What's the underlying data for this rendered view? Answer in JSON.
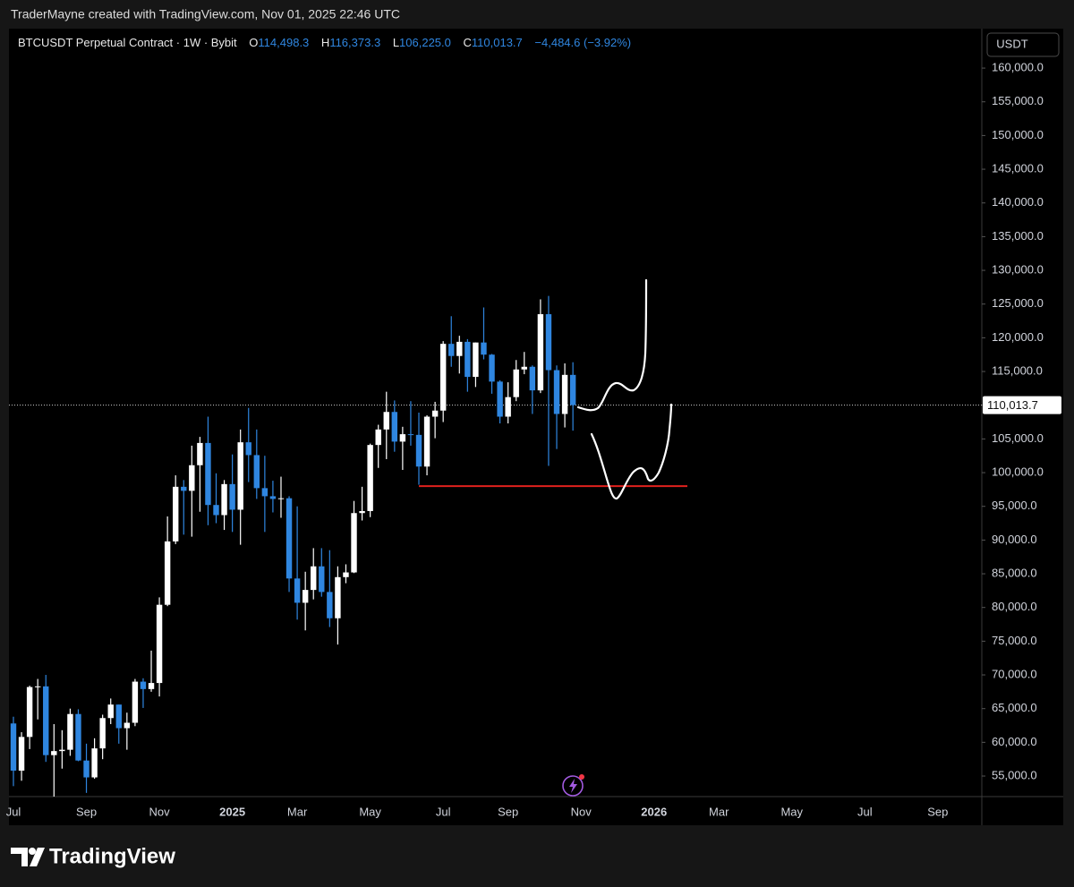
{
  "header": {
    "credit": "TraderMayne created with TradingView.com, Nov 01, 2025 22:46 UTC"
  },
  "chart_data": {
    "type": "candlestick",
    "symbol": "BTCUSDT Perpetual Contract · 1W · Bybit",
    "ohlc_legend": [
      {
        "label": "O",
        "value": "114,498.3"
      },
      {
        "label": "H",
        "value": "116,373.3"
      },
      {
        "label": "L",
        "value": "106,225.0"
      },
      {
        "label": "C",
        "value": "110,013.7"
      }
    ],
    "change": "−4,484.6 (−3.92%)",
    "currency": "USDT",
    "categories": [
      "Jul",
      null,
      null,
      null,
      null,
      null,
      null,
      null,
      null,
      "Sep",
      null,
      null,
      null,
      null,
      null,
      null,
      null,
      null,
      "Nov",
      null,
      null,
      null,
      null,
      null,
      null,
      null,
      null,
      "2025",
      null,
      null,
      null,
      null,
      null,
      null,
      null,
      "Mar",
      null,
      null,
      null,
      null,
      null,
      null,
      null,
      null,
      "May",
      null,
      null,
      null,
      null,
      null,
      null,
      null,
      null,
      "Jul",
      null,
      null,
      null,
      null,
      null,
      null,
      null,
      "Sep",
      null,
      null,
      null,
      null,
      null,
      null,
      null,
      null,
      "Nov",
      null,
      null,
      null,
      null,
      null,
      null,
      null,
      null,
      "2026",
      null,
      null,
      null,
      null,
      null,
      null,
      null,
      "Mar",
      null,
      null,
      null,
      null,
      null,
      null,
      null,
      null,
      "May",
      null,
      null,
      null,
      null,
      null,
      null,
      null,
      null,
      "Jul",
      null,
      null,
      null,
      null,
      null,
      null,
      null,
      null,
      "Sep",
      null,
      null,
      null,
      null,
      null
    ],
    "open": [
      62800,
      55800,
      60800,
      68200,
      68300,
      58100,
      58700,
      58900,
      64200,
      57300,
      54800,
      59100,
      63600,
      65600,
      62100,
      62900,
      69000,
      67900,
      68800,
      80400,
      89800,
      97900,
      97300,
      101100,
      104400,
      95200,
      93700,
      98300,
      94500,
      104500,
      102600,
      97700,
      96500,
      96100,
      96200,
      84300,
      80700,
      82600,
      86100,
      82300,
      78400,
      84500,
      85200,
      94000,
      94300,
      104100,
      106400,
      109000,
      104600,
      105700,
      105600,
      100900,
      108300,
      109200,
      119100,
      117300,
      119400,
      114200,
      119300,
      117500,
      113500,
      108300,
      111200,
      115300,
      115700,
      112200,
      123500,
      115200,
      108700,
      114498.3,
      null,
      null,
      null,
      null,
      null,
      null,
      null,
      null,
      null,
      null,
      null,
      null,
      null,
      null,
      null,
      null,
      null,
      null,
      null,
      null,
      null,
      null,
      null,
      null,
      null,
      null,
      null,
      null,
      null,
      null,
      null,
      null,
      null,
      null,
      null,
      null,
      null,
      null,
      null,
      null,
      null,
      null,
      null,
      null,
      null,
      null,
      null,
      null,
      null,
      null
    ],
    "high": [
      63800,
      61500,
      68400,
      69400,
      70000,
      62700,
      61800,
      65000,
      64900,
      59800,
      60600,
      64100,
      66500,
      65600,
      64400,
      69400,
      69500,
      73600,
      81500,
      93500,
      99600,
      98900,
      104000,
      105300,
      108300,
      99900,
      98900,
      102700,
      106400,
      109600,
      106400,
      102500,
      98800,
      99400,
      96500,
      95000,
      85300,
      88800,
      88800,
      88500,
      86100,
      86400,
      95800,
      97900,
      104300,
      107100,
      112000,
      110700,
      106800,
      110600,
      108900,
      108500,
      110500,
      119500,
      123200,
      120300,
      119800,
      119300,
      124500,
      117600,
      113700,
      113400,
      116700,
      117900,
      115900,
      125700,
      126200,
      115900,
      116200,
      116373.3,
      null,
      null,
      null,
      null,
      null,
      null,
      null,
      null,
      null,
      null,
      null,
      null,
      null,
      null,
      null,
      null,
      null,
      null,
      null,
      null,
      null,
      null,
      null,
      null,
      null,
      null,
      null,
      null,
      null,
      null,
      null,
      null,
      null,
      null,
      null,
      null,
      null,
      null,
      null,
      null,
      null,
      null,
      null,
      null,
      null,
      null,
      null,
      null,
      null,
      null
    ],
    "low": [
      53500,
      54300,
      59000,
      63400,
      57100,
      49000,
      56100,
      58000,
      57200,
      52500,
      54600,
      57500,
      62700,
      59800,
      58900,
      62400,
      65100,
      67500,
      66800,
      80200,
      89400,
      90800,
      90500,
      94200,
      92200,
      92500,
      91500,
      91200,
      89300,
      98600,
      96100,
      91200,
      94100,
      93300,
      82300,
      78200,
      76600,
      81200,
      81600,
      77100,
      74500,
      83600,
      85100,
      92900,
      93400,
      100700,
      102000,
      103100,
      100400,
      104000,
      98200,
      99600,
      105100,
      107500,
      115700,
      114700,
      112000,
      112700,
      116800,
      111700,
      107300,
      107300,
      110600,
      114600,
      108700,
      111800,
      101000,
      103500,
      106700,
      106225.0,
      null,
      null,
      null,
      null,
      null,
      null,
      null,
      null,
      null,
      null,
      null,
      null,
      null,
      null,
      null,
      null,
      null,
      null,
      null,
      null,
      null,
      null,
      null,
      null,
      null,
      null,
      null,
      null,
      null,
      null,
      null,
      null,
      null,
      null,
      null,
      null,
      null,
      null,
      null,
      null,
      null,
      null,
      null,
      null,
      null,
      null,
      null,
      null,
      null,
      null
    ],
    "close": [
      55800,
      60800,
      68200,
      68300,
      58100,
      58700,
      58900,
      64200,
      57300,
      54800,
      59100,
      63600,
      65600,
      62100,
      62900,
      69000,
      67900,
      68800,
      80400,
      89800,
      97900,
      97300,
      101100,
      104400,
      95200,
      93700,
      98300,
      94500,
      104500,
      102600,
      97700,
      96500,
      96100,
      96200,
      84300,
      80700,
      82600,
      86100,
      82300,
      78400,
      84500,
      85200,
      94000,
      94300,
      104100,
      106400,
      109000,
      104600,
      105700,
      105600,
      100900,
      108300,
      109200,
      119100,
      117300,
      119400,
      114200,
      119300,
      117500,
      113500,
      108300,
      111200,
      115300,
      115700,
      112200,
      123500,
      115200,
      108700,
      114500,
      110013.7,
      null,
      null,
      null,
      null,
      null,
      null,
      null,
      null,
      null,
      null,
      null,
      null,
      null,
      null,
      null,
      null,
      null,
      null,
      null,
      null,
      null,
      null,
      null,
      null,
      null,
      null,
      null,
      null,
      null,
      null,
      null,
      null,
      null,
      null,
      null,
      null,
      null,
      null,
      null,
      null,
      null,
      null,
      null,
      null,
      null,
      null,
      null,
      null,
      null,
      null
    ],
    "up_color": "#ffffff",
    "down_color": "#2f86e0",
    "ylim": [
      51950,
      165850
    ],
    "yticks": [
      {
        "value": 160000,
        "label": "160,000.0"
      },
      {
        "value": 155000,
        "label": "155,000.0"
      },
      {
        "value": 150000,
        "label": "150,000.0"
      },
      {
        "value": 145000,
        "label": "145,000.0"
      },
      {
        "value": 140000,
        "label": "140,000.0"
      },
      {
        "value": 135000,
        "label": "135,000.0"
      },
      {
        "value": 130000,
        "label": "130,000.0"
      },
      {
        "value": 125000,
        "label": "125,000.0"
      },
      {
        "value": 120000,
        "label": "120,000.0"
      },
      {
        "value": 115000,
        "label": "115,000.0"
      },
      {
        "value": 110000,
        "label": "110,000.0"
      },
      {
        "value": 105000,
        "label": "105,000.0"
      },
      {
        "value": 100000,
        "label": "100,000.0"
      },
      {
        "value": 95000,
        "label": "95,000.0"
      },
      {
        "value": 90000,
        "label": "90,000.0"
      },
      {
        "value": 85000,
        "label": "85,000.0"
      },
      {
        "value": 80000,
        "label": "80,000.0"
      },
      {
        "value": 75000,
        "label": "75,000.0"
      },
      {
        "value": 70000,
        "label": "70,000.0"
      },
      {
        "value": 65000,
        "label": "65,000.0"
      },
      {
        "value": 60000,
        "label": "60,000.0"
      },
      {
        "value": 55000,
        "label": "55,000.0"
      }
    ],
    "last_price": {
      "value": 110013.7,
      "label": "110,013.7"
    },
    "horizontal_line": {
      "value": 98000,
      "color": "#e0211d"
    },
    "grid": false
  },
  "footer": {
    "brand": "TradingView"
  }
}
